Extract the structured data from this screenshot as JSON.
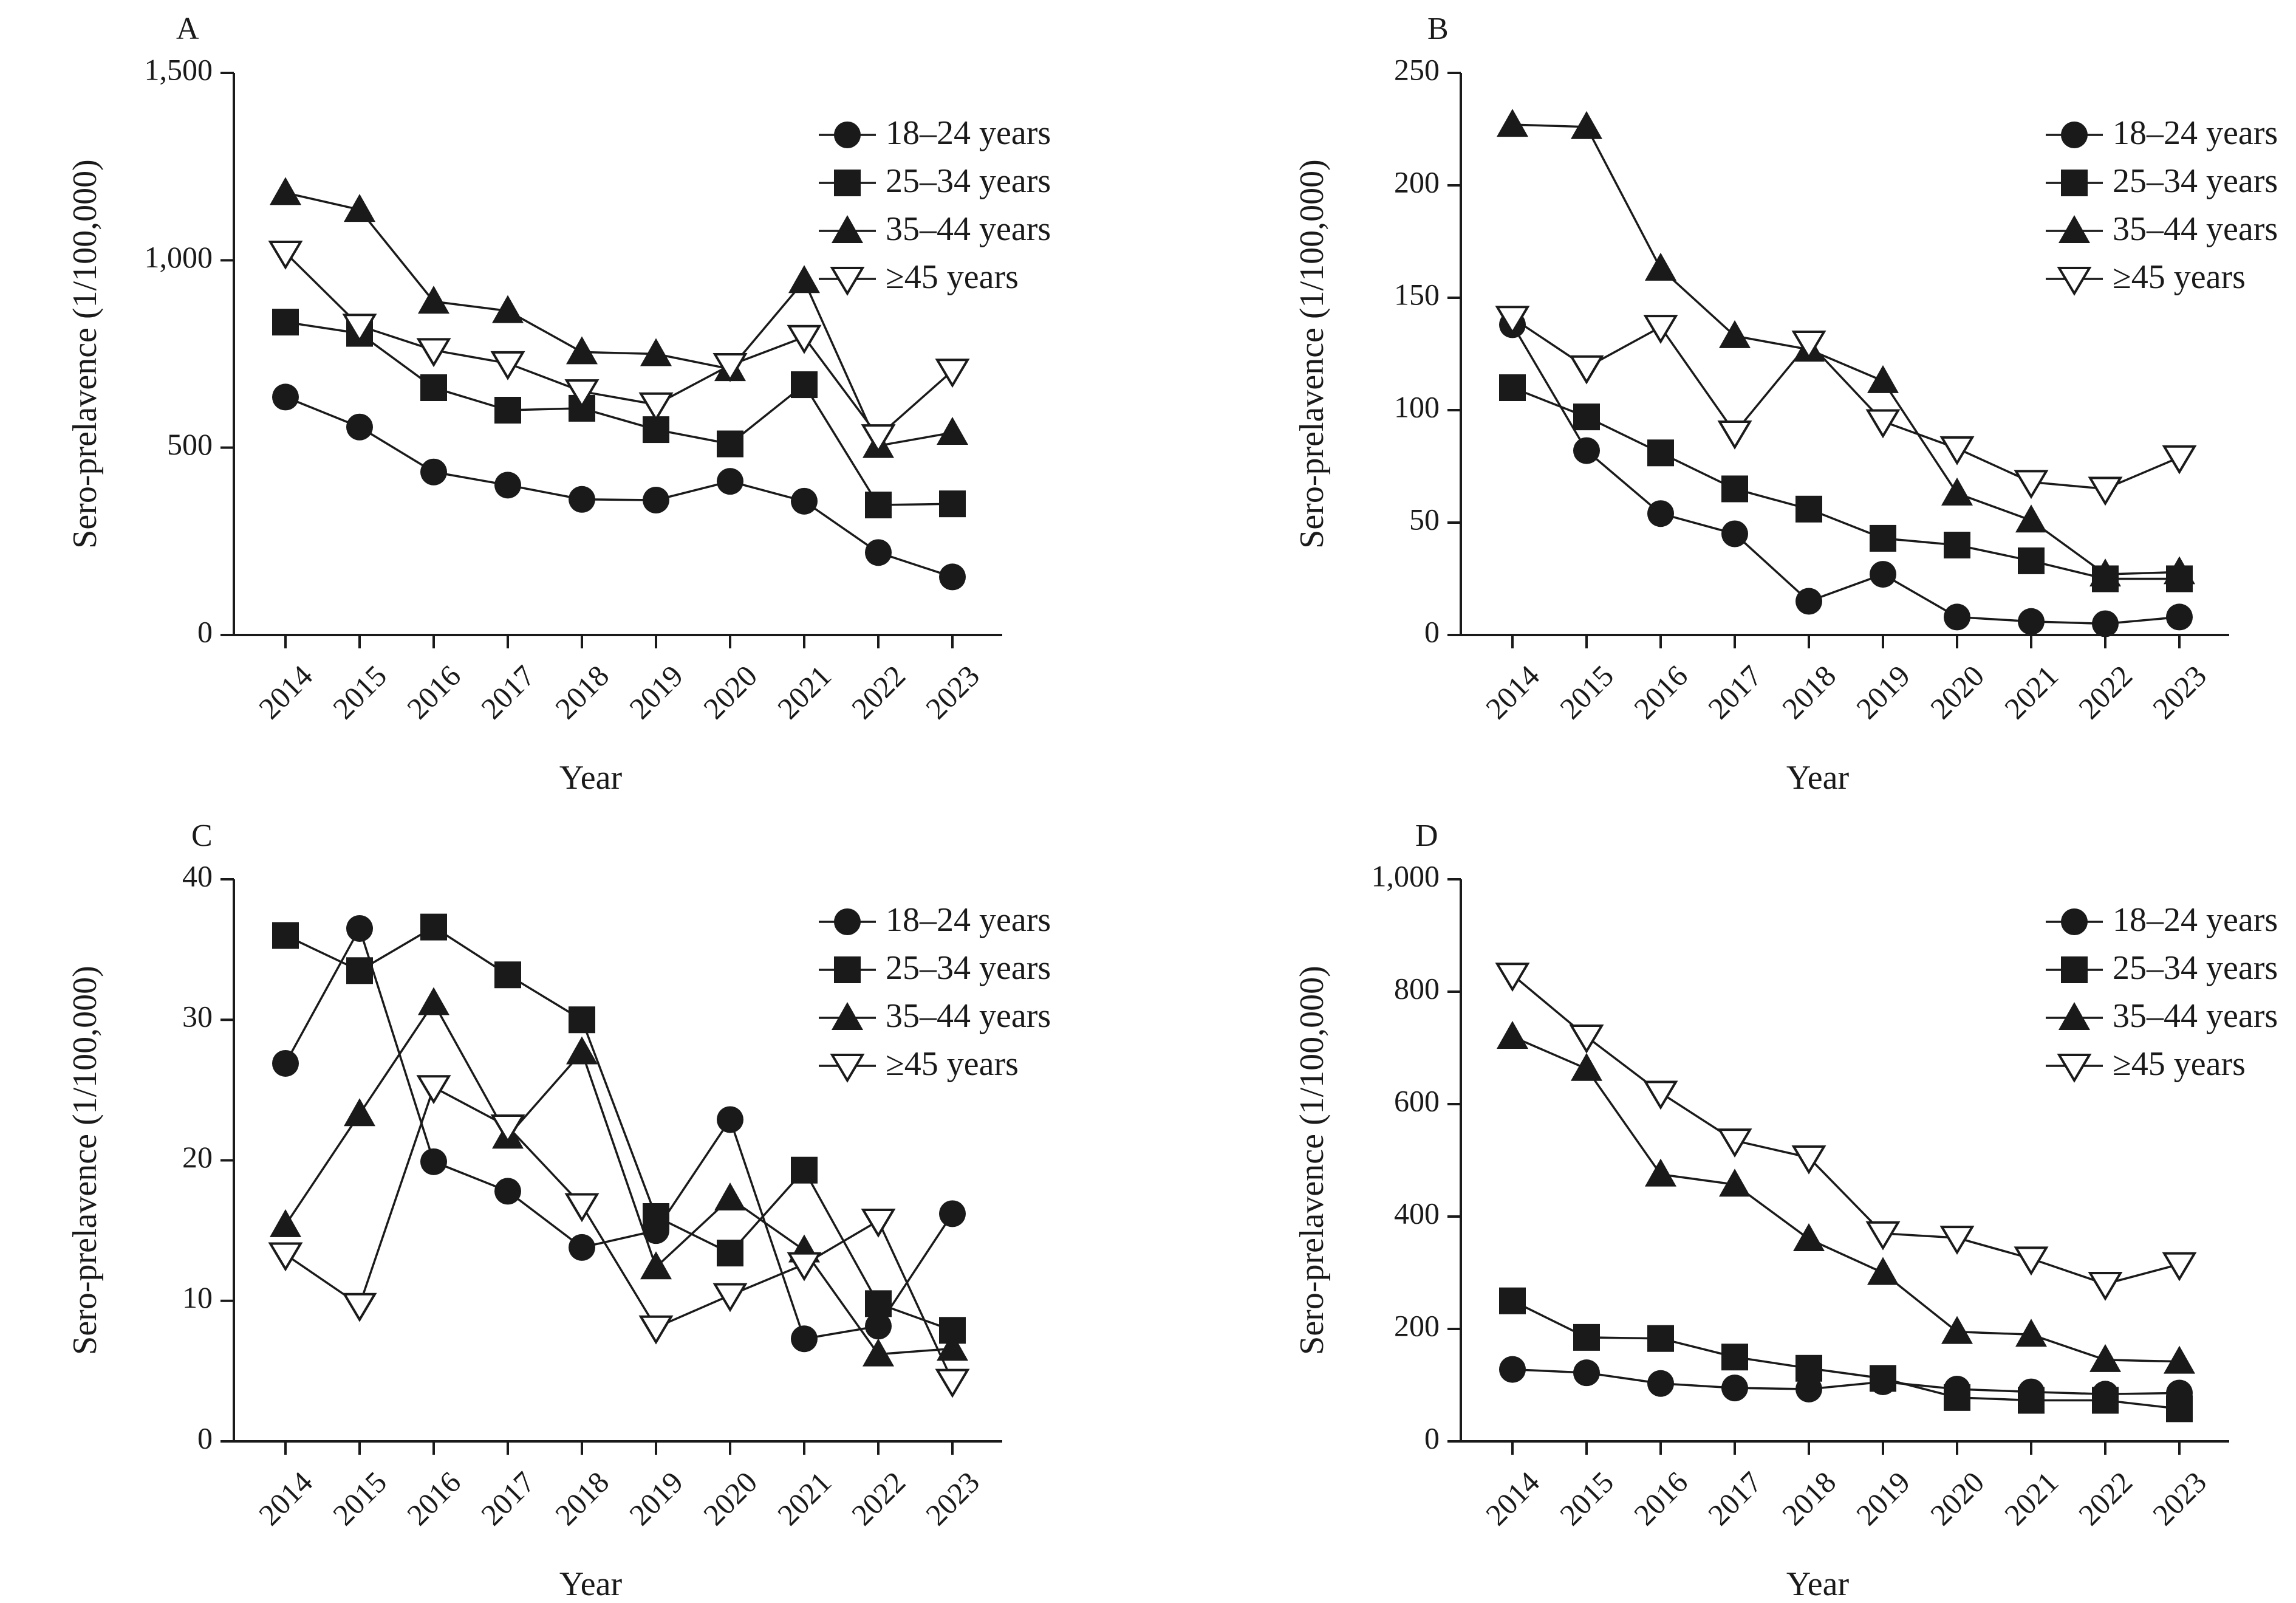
{
  "colors": {
    "ink": "#1a1a1a",
    "background": "#ffffff"
  },
  "chart_data": [
    {
      "panel": "A",
      "type": "line",
      "xlabel": "Year",
      "ylabel": "Sero-prelavence (1/100,000)",
      "categories": [
        "2014",
        "2015",
        "2016",
        "2017",
        "2018",
        "2019",
        "2020",
        "2021",
        "2022",
        "2023"
      ],
      "ylim": [
        0,
        1500
      ],
      "yticks": [
        0,
        500,
        1000,
        1500
      ],
      "ytick_labels": [
        "0",
        "500",
        "1,000",
        "1,500"
      ],
      "legend_position": "top-right",
      "series": [
        {
          "name": "18–24 years",
          "marker": "circle",
          "values": [
            635,
            555,
            435,
            400,
            362,
            360,
            410,
            357,
            220,
            155
          ]
        },
        {
          "name": "25–34 years",
          "marker": "square",
          "values": [
            835,
            805,
            660,
            600,
            605,
            548,
            510,
            668,
            347,
            350
          ]
        },
        {
          "name": "35–44 years",
          "marker": "triangle",
          "values": [
            1180,
            1135,
            890,
            865,
            755,
            750,
            710,
            945,
            505,
            540
          ]
        },
        {
          "name": "≥45 years",
          "marker": "triangle-down-open",
          "values": [
            1020,
            825,
            760,
            725,
            650,
            615,
            720,
            795,
            530,
            705
          ]
        }
      ]
    },
    {
      "panel": "B",
      "type": "line",
      "xlabel": "Year",
      "ylabel": "Sero-prelavence (1/100,000)",
      "categories": [
        "2014",
        "2015",
        "2016",
        "2017",
        "2018",
        "2019",
        "2020",
        "2021",
        "2022",
        "2023"
      ],
      "ylim": [
        0,
        250
      ],
      "yticks": [
        0,
        50,
        100,
        150,
        200,
        250
      ],
      "ytick_labels": [
        "0",
        "50",
        "100",
        "150",
        "200",
        "250"
      ],
      "legend_position": "top-right",
      "series": [
        {
          "name": "18–24 years",
          "marker": "circle",
          "values": [
            138,
            82,
            54,
            45,
            15,
            27,
            8,
            6,
            5,
            8
          ]
        },
        {
          "name": "25–34 years",
          "marker": "square",
          "values": [
            110,
            97,
            81,
            65,
            56,
            43,
            40,
            33,
            25,
            25
          ]
        },
        {
          "name": "35–44 years",
          "marker": "triangle",
          "values": [
            227,
            226,
            163,
            133,
            127,
            113,
            63,
            51,
            27,
            28
          ]
        },
        {
          "name": "≥45 years",
          "marker": "triangle-down-open",
          "values": [
            141,
            119,
            137,
            90,
            130,
            95,
            83,
            68,
            65,
            79
          ]
        }
      ]
    },
    {
      "panel": "C",
      "type": "line",
      "xlabel": "Year",
      "ylabel": "Sero-prelavence (1/100,000)",
      "categories": [
        "2014",
        "2015",
        "2016",
        "2017",
        "2018",
        "2019",
        "2020",
        "2021",
        "2022",
        "2023"
      ],
      "ylim": [
        0,
        40
      ],
      "yticks": [
        0,
        10,
        20,
        30,
        40
      ],
      "ytick_labels": [
        "0",
        "10",
        "20",
        "30",
        "40"
      ],
      "legend_position": "top-right",
      "series": [
        {
          "name": "18–24 years",
          "marker": "circle",
          "values": [
            26.9,
            36.5,
            19.9,
            17.8,
            13.8,
            15.0,
            22.9,
            7.3,
            8.2,
            16.2
          ]
        },
        {
          "name": "25–34 years",
          "marker": "square",
          "values": [
            36.0,
            33.5,
            36.6,
            33.2,
            30.0,
            16.0,
            13.4,
            19.3,
            9.8,
            7.9
          ]
        },
        {
          "name": "35–44 years",
          "marker": "triangle",
          "values": [
            15.4,
            23.3,
            31.2,
            21.7,
            27.7,
            12.4,
            17.3,
            13.6,
            6.2,
            6.6
          ]
        },
        {
          "name": "≥45 years",
          "marker": "triangle-down-open",
          "values": [
            13.3,
            9.7,
            25.2,
            22.4,
            16.8,
            8.1,
            10.4,
            12.6,
            15.7,
            4.3
          ]
        }
      ]
    },
    {
      "panel": "D",
      "type": "line",
      "xlabel": "Year",
      "ylabel": "Sero-prelavence (1/100,000)",
      "categories": [
        "2014",
        "2015",
        "2016",
        "2017",
        "2018",
        "2019",
        "2020",
        "2021",
        "2022",
        "2023"
      ],
      "ylim": [
        0,
        1000
      ],
      "yticks": [
        0,
        200,
        400,
        600,
        800,
        1000
      ],
      "ytick_labels": [
        "0",
        "200",
        "400",
        "600",
        "800",
        "1,000"
      ],
      "legend_position": "top-right",
      "series": [
        {
          "name": "18–24 years",
          "marker": "circle",
          "values": [
            128,
            122,
            103,
            95,
            93,
            106,
            93,
            88,
            84,
            86
          ]
        },
        {
          "name": "25–34 years",
          "marker": "square",
          "values": [
            250,
            185,
            183,
            150,
            130,
            112,
            78,
            73,
            73,
            58
          ]
        },
        {
          "name": "35–44 years",
          "marker": "triangle",
          "values": [
            720,
            663,
            475,
            457,
            360,
            300,
            195,
            190,
            145,
            142
          ]
        },
        {
          "name": "≥45 years",
          "marker": "triangle-down-open",
          "values": [
            830,
            720,
            620,
            535,
            505,
            370,
            362,
            325,
            280,
            315
          ]
        }
      ]
    }
  ]
}
